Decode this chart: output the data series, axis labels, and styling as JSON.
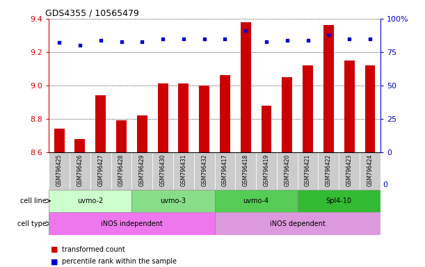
{
  "title": "GDS4355 / 10565479",
  "samples": [
    "GSM796425",
    "GSM796426",
    "GSM796427",
    "GSM796428",
    "GSM796429",
    "GSM796430",
    "GSM796431",
    "GSM796432",
    "GSM796417",
    "GSM796418",
    "GSM796419",
    "GSM796420",
    "GSM796421",
    "GSM796422",
    "GSM796423",
    "GSM796424"
  ],
  "transformed_counts": [
    8.74,
    8.68,
    8.94,
    8.79,
    8.82,
    9.01,
    9.01,
    9.0,
    9.06,
    9.38,
    8.88,
    9.05,
    9.12,
    9.36,
    9.15,
    9.12
  ],
  "percentile_ranks": [
    82,
    80,
    84,
    83,
    83,
    85,
    85,
    85,
    85,
    91,
    83,
    84,
    84,
    88,
    85,
    85
  ],
  "bar_color": "#cc0000",
  "dot_color": "#0000cc",
  "ylim_left": [
    8.6,
    9.4
  ],
  "ylim_right": [
    0,
    100
  ],
  "yticks_left": [
    8.6,
    8.8,
    9.0,
    9.2,
    9.4
  ],
  "yticks_right": [
    0,
    25,
    50,
    75,
    100
  ],
  "cell_lines": [
    {
      "label": "uvmo-2",
      "start": 0,
      "end": 4,
      "color": "#ccffcc"
    },
    {
      "label": "uvmo-3",
      "start": 4,
      "end": 8,
      "color": "#88dd88"
    },
    {
      "label": "uvmo-4",
      "start": 8,
      "end": 12,
      "color": "#55cc55"
    },
    {
      "label": "Spl4-10",
      "start": 12,
      "end": 16,
      "color": "#33bb33"
    }
  ],
  "cell_types": [
    {
      "label": "iNOS independent",
      "start": 0,
      "end": 8,
      "color": "#ee77ee"
    },
    {
      "label": "iNOS dependent",
      "start": 8,
      "end": 16,
      "color": "#dd99dd"
    }
  ],
  "legend_items": [
    {
      "label": "transformed count",
      "color": "#cc0000"
    },
    {
      "label": "percentile rank within the sample",
      "color": "#0000cc"
    }
  ],
  "xtick_bg_color": "#cccccc",
  "spine_color": "#000000"
}
